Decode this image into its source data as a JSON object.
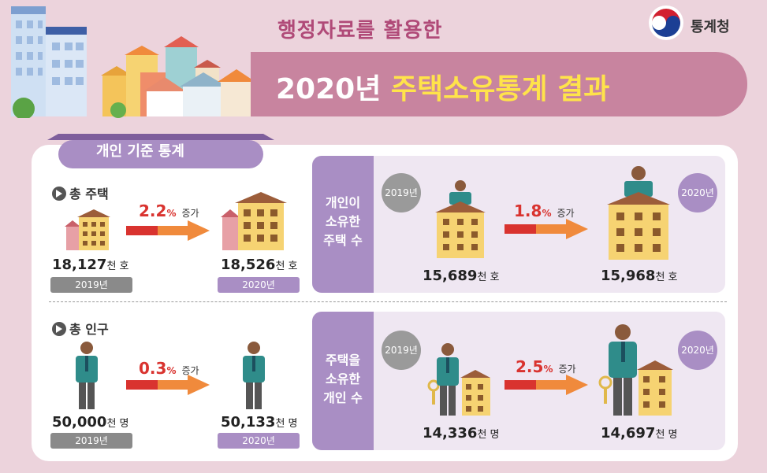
{
  "header": {
    "subtitle": "행정자료를 활용한",
    "title_year": "2020년",
    "title_highlight": "주택소유통계 결과",
    "agency": "통계청"
  },
  "tab": {
    "label": "개인 기준 통계"
  },
  "left": {
    "housing": {
      "heading": "총 주택",
      "from_value": "18,127",
      "from_unit": "천 호",
      "from_year": "2019년",
      "to_value": "18,526",
      "to_unit": "천 호",
      "to_year": "2020년",
      "change": "2.2",
      "pct": "%",
      "increase": "증가"
    },
    "population": {
      "heading": "총 인구",
      "from_value": "50,000",
      "from_unit": "천 명",
      "from_year": "2019년",
      "to_value": "50,133",
      "to_unit": "천 명",
      "to_year": "2020년",
      "change": "0.3",
      "pct": "%",
      "increase": "증가"
    }
  },
  "right": {
    "owned_houses": {
      "label_lines": [
        "개인이",
        "소유한",
        "주택 수"
      ],
      "from_year": "2019년",
      "to_year": "2020년",
      "from_value": "15,689",
      "from_unit": "천 호",
      "to_value": "15,968",
      "to_unit": "천 호",
      "change": "1.8",
      "pct": "%",
      "increase": "증가"
    },
    "owners": {
      "label_lines": [
        "주택을",
        "소유한",
        "개인 수"
      ],
      "from_year": "2019년",
      "to_year": "2020년",
      "from_value": "14,336",
      "from_unit": "천 명",
      "to_value": "14,697",
      "to_unit": "천 명",
      "change": "2.5",
      "pct": "%",
      "increase": "증가"
    }
  },
  "colors": {
    "background": "#ecd3dc",
    "title_bar": "#c8849f",
    "highlight": "#ffe34a",
    "accent_purple": "#a98ec4",
    "arrow_red": "#d9332f",
    "arrow_orange": "#f08a3c"
  }
}
